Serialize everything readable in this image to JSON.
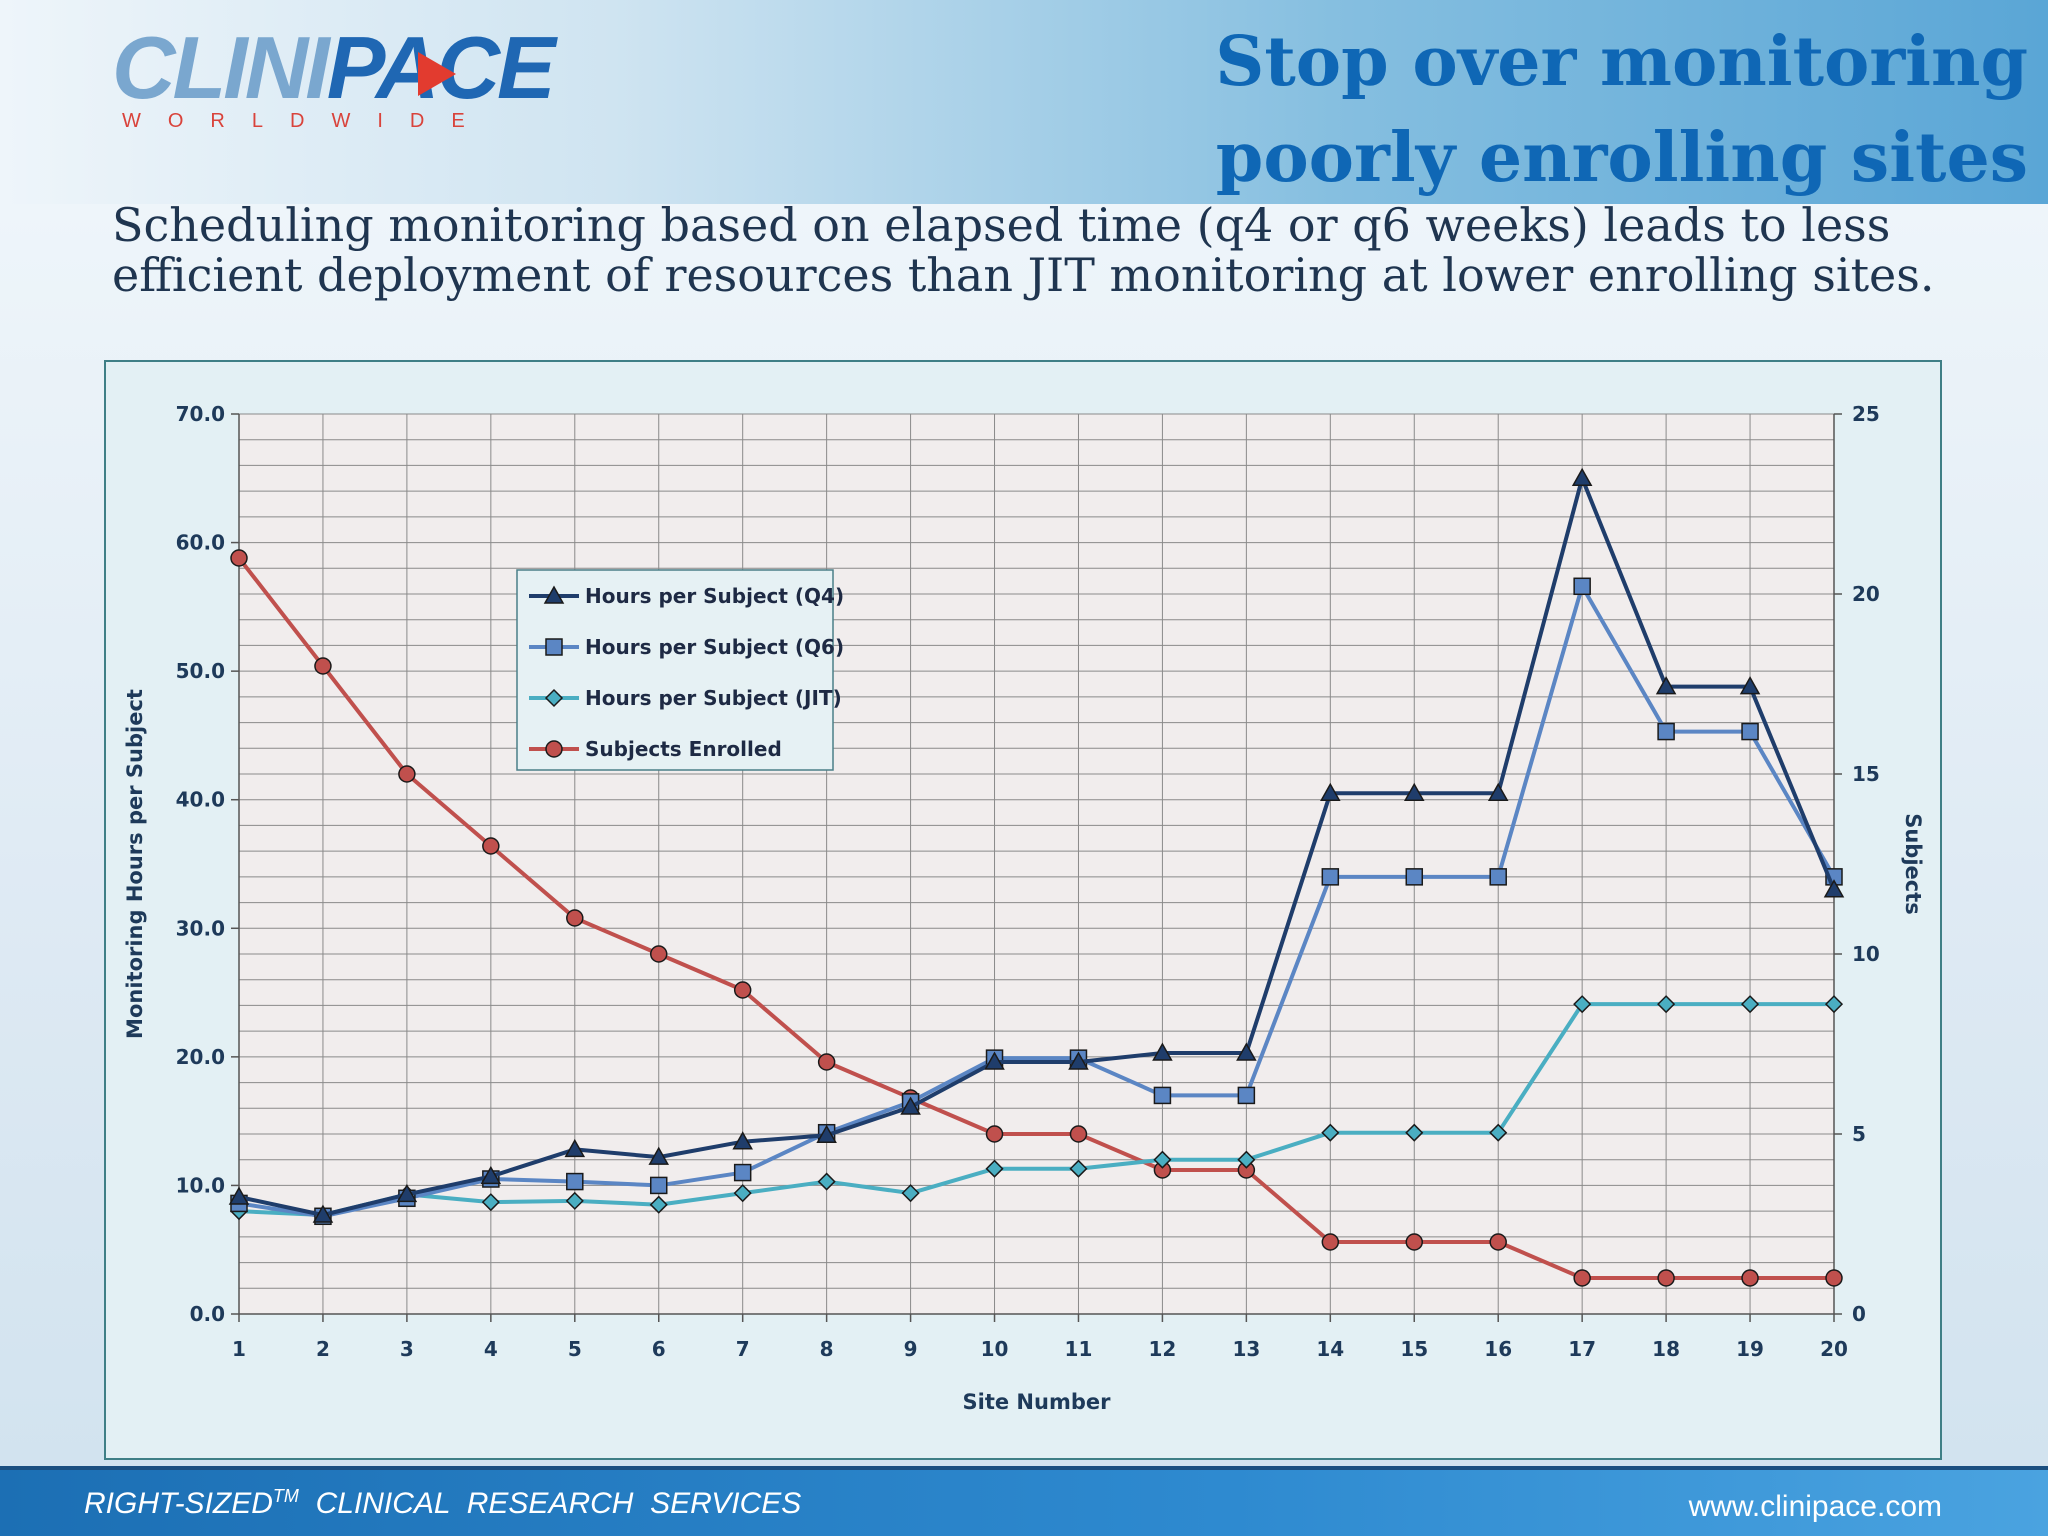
{
  "header": {
    "logo_clini": "CLINI",
    "logo_pace": "PACE",
    "logo_sub": "WORLDWIDE",
    "title_line1": "Stop over monitoring",
    "title_line2": "poorly enrolling sites"
  },
  "subtitle": "Scheduling monitoring based on elapsed time (q4 or q6 weeks) leads to less efficient deployment of resources than JIT monitoring at lower enrolling sites.",
  "footer": {
    "left_pre": "RIGHT-SIZED",
    "left_sup": "TM",
    "left_post": "  CLINICAL  RESEARCH  SERVICES",
    "right": "www.clinipace.com"
  },
  "colors": {
    "q4": "#1f3d6b",
    "q6": "#5b86c4",
    "jit": "#4aaec2",
    "enrolled": "#c0504d",
    "grid": "#8a8a8a",
    "plot_bg": "#f1eded"
  },
  "chart_data": {
    "type": "line",
    "title": "",
    "xlabel": "Site Number",
    "ylabel": "Monitoring Hours per Subject",
    "y2label": "Subjects",
    "x": [
      1,
      2,
      3,
      4,
      5,
      6,
      7,
      8,
      9,
      10,
      11,
      12,
      13,
      14,
      15,
      16,
      17,
      18,
      19,
      20
    ],
    "ylim": [
      0,
      70
    ],
    "y_ticks": [
      "0.0",
      "10.0",
      "20.0",
      "30.0",
      "40.0",
      "50.0",
      "60.0",
      "70.0"
    ],
    "y2lim": [
      0,
      25
    ],
    "y2_ticks": [
      "0",
      "5",
      "10",
      "15",
      "20",
      "25"
    ],
    "grid": true,
    "legend_position": "upper-left-center",
    "series": [
      {
        "name": "Hours per Subject (Q4)",
        "axis": "left",
        "marker": "triangle",
        "color_key": "q4",
        "values": [
          9.1,
          7.7,
          9.3,
          10.7,
          12.8,
          12.2,
          13.4,
          13.9,
          16.1,
          19.6,
          19.6,
          20.3,
          20.3,
          40.5,
          40.5,
          40.5,
          65.0,
          48.8,
          48.8,
          33.0
        ]
      },
      {
        "name": "Hours per Subject (Q6)",
        "axis": "left",
        "marker": "square",
        "color_key": "q6",
        "values": [
          8.6,
          7.6,
          9.0,
          10.5,
          10.3,
          10.0,
          11.0,
          14.1,
          16.5,
          19.9,
          19.9,
          17.0,
          17.0,
          34.0,
          34.0,
          34.0,
          56.6,
          45.3,
          45.3,
          34.0
        ]
      },
      {
        "name": "Hours per Subject (JIT)",
        "axis": "left",
        "marker": "diamond",
        "color_key": "jit",
        "values": [
          8.0,
          7.7,
          9.3,
          8.7,
          8.8,
          8.5,
          9.4,
          10.3,
          9.4,
          11.3,
          11.3,
          12.0,
          12.0,
          14.1,
          14.1,
          14.1,
          24.1,
          24.1,
          24.1,
          24.1
        ]
      },
      {
        "name": "Subjects Enrolled",
        "axis": "right",
        "marker": "circle",
        "color_key": "enrolled",
        "values": [
          21,
          18,
          15,
          13,
          11,
          10,
          9,
          7,
          6,
          5,
          5,
          4,
          4,
          2,
          2,
          2,
          1,
          1,
          1,
          1
        ]
      }
    ]
  }
}
